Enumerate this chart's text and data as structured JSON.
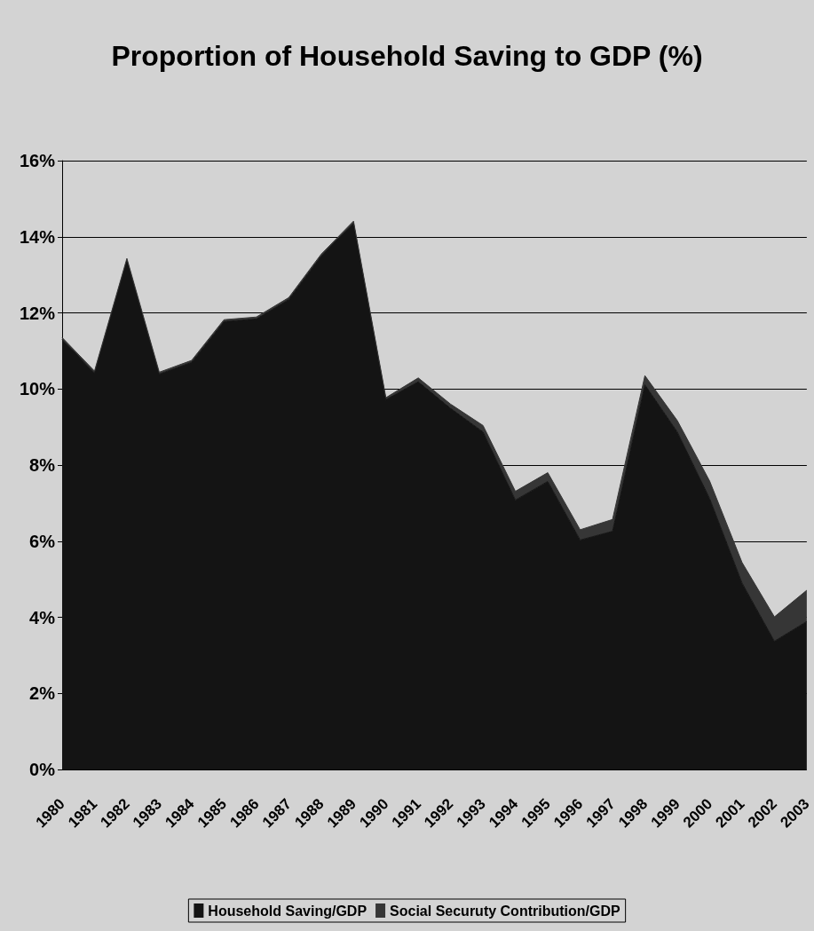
{
  "chart_data": {
    "type": "area",
    "stacked": true,
    "title": "Proportion of Household Saving to GDP (%)",
    "categories": [
      "1980",
      "1981",
      "1982",
      "1983",
      "1984",
      "1985",
      "1986",
      "1987",
      "1988",
      "1989",
      "1990",
      "1991",
      "1992",
      "1993",
      "1994",
      "1995",
      "1996",
      "1997",
      "1998",
      "1999",
      "2000",
      "2001",
      "2002",
      "2003"
    ],
    "series": [
      {
        "name": "Household Saving/GDP",
        "color": "#141414",
        "values": [
          11.3,
          10.42,
          13.38,
          10.39,
          10.7,
          11.77,
          11.84,
          12.35,
          13.49,
          14.36,
          9.72,
          10.19,
          9.49,
          8.87,
          7.08,
          7.57,
          6.03,
          6.26,
          10.11,
          8.87,
          7.12,
          4.9,
          3.37,
          3.89
        ]
      },
      {
        "name": "Social Securuty Contribution/GDP",
        "color": "#363636",
        "values": [
          0.05,
          0.05,
          0.05,
          0.05,
          0.05,
          0.05,
          0.05,
          0.05,
          0.05,
          0.05,
          0.05,
          0.1,
          0.11,
          0.17,
          0.23,
          0.23,
          0.27,
          0.31,
          0.24,
          0.3,
          0.46,
          0.54,
          0.64,
          0.82
        ]
      }
    ],
    "ylim": [
      0,
      16
    ],
    "yticks": [
      {
        "value": 0,
        "label": "0%"
      },
      {
        "value": 2,
        "label": "2%"
      },
      {
        "value": 4,
        "label": "4%"
      },
      {
        "value": 6,
        "label": "6%"
      },
      {
        "value": 8,
        "label": "8%"
      },
      {
        "value": 10,
        "label": "10%"
      },
      {
        "value": 12,
        "label": "12%"
      },
      {
        "value": 14,
        "label": "14%"
      },
      {
        "value": 16,
        "label": "16%"
      }
    ],
    "grid": "y",
    "legend": "bottom",
    "marker": "none"
  }
}
